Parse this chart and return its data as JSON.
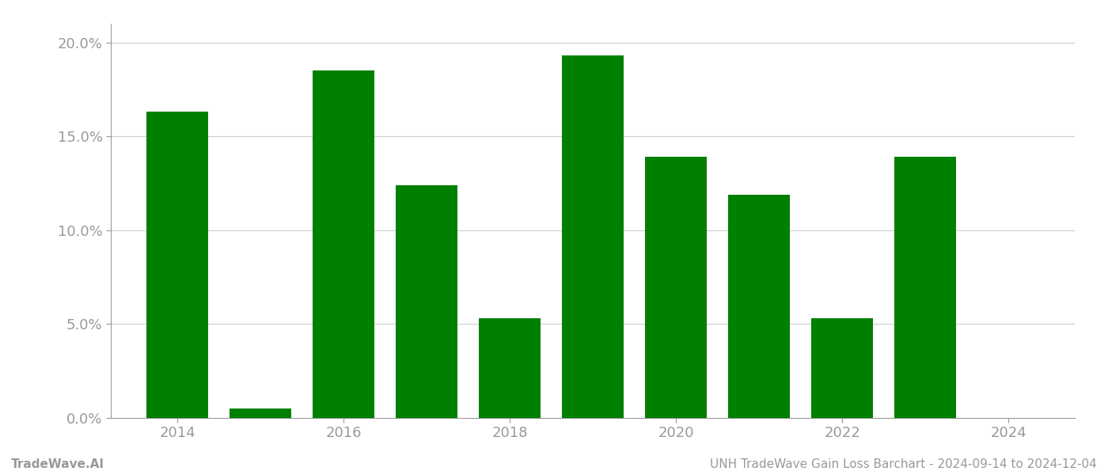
{
  "years": [
    2014,
    2015,
    2016,
    2017,
    2018,
    2019,
    2020,
    2021,
    2022,
    2023,
    2024
  ],
  "values": [
    0.163,
    0.005,
    0.185,
    0.124,
    0.053,
    0.193,
    0.139,
    0.119,
    0.053,
    0.139,
    0.0
  ],
  "bar_color": "#008000",
  "background_color": "#ffffff",
  "grid_color": "#cccccc",
  "axis_label_color": "#999999",
  "ylim": [
    0,
    0.21
  ],
  "yticks": [
    0.0,
    0.05,
    0.1,
    0.15,
    0.2
  ],
  "ytick_labels": [
    "0.0%",
    "5.0%",
    "10.0%",
    "15.0%",
    "20.0%"
  ],
  "xticks": [
    2014,
    2016,
    2018,
    2020,
    2022,
    2024
  ],
  "xtick_labels": [
    "2014",
    "2016",
    "2018",
    "2020",
    "2022",
    "2024"
  ],
  "xlim": [
    2013.2,
    2024.8
  ],
  "bar_width": 0.75,
  "footer_left": "TradeWave.AI",
  "footer_right": "UNH TradeWave Gain Loss Barchart - 2024-09-14 to 2024-12-04",
  "footer_color": "#999999",
  "footer_fontsize": 11,
  "tick_fontsize": 13
}
